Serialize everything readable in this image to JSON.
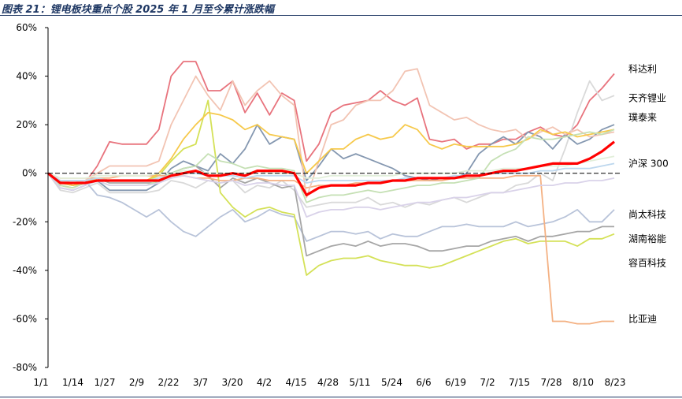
{
  "chart_data": {
    "type": "line",
    "title": "图表 21：锂电板块重点个股 2025 年 1 月至今累计涨跌幅",
    "x_tick_labels": [
      "1/1",
      "1/14",
      "1/27",
      "2/9",
      "2/22",
      "3/7",
      "3/20",
      "4/2",
      "4/15",
      "4/28",
      "5/11",
      "5/24",
      "6/6",
      "6/19",
      "7/2",
      "7/15",
      "7/28",
      "8/10",
      "8/23"
    ],
    "y_tick_labels": [
      "60%",
      "40%",
      "20%",
      "0%",
      "-20%",
      "-40%",
      "-60%",
      "-80%"
    ],
    "y_ticks": [
      60,
      40,
      20,
      0,
      -20,
      -40,
      -60,
      -80
    ],
    "ylim": [
      -80,
      60
    ],
    "xlabel": "",
    "ylabel": "",
    "grid": false,
    "series": [
      {
        "name": "科达利",
        "color": "#e8737d",
        "values": [
          0,
          -3,
          -5,
          -4,
          3,
          13,
          12,
          12,
          12,
          18,
          40,
          46,
          46,
          34,
          34,
          38,
          25,
          33,
          24,
          33,
          30,
          5,
          12,
          25,
          28,
          29,
          30,
          34,
          30,
          28,
          31,
          14,
          13,
          14,
          10,
          12,
          12,
          14,
          14,
          17,
          19,
          16,
          15,
          20,
          30,
          35,
          41
        ]
      },
      {
        "name": "天齐锂业",
        "color": "#d9d9d9",
        "values": [
          0,
          -7,
          -8,
          -6,
          -4,
          -8,
          -8,
          -8,
          -8,
          -7,
          -3,
          -4,
          -6,
          -3,
          -4,
          -3,
          -8,
          -5,
          -6,
          -3,
          -7,
          -14,
          -13,
          -12,
          -12,
          -12,
          -10,
          -13,
          -12,
          -14,
          -12,
          -13,
          -11,
          -10,
          -12,
          -10,
          -8,
          -8,
          -5,
          -4,
          0,
          -3,
          10,
          25,
          38,
          30,
          32
        ]
      },
      {
        "name": "璞泰来",
        "color": "#8497b0",
        "values": [
          0,
          -6,
          -7,
          -5,
          -3,
          -7,
          -7,
          -7,
          -7,
          -4,
          2,
          5,
          3,
          1,
          8,
          4,
          10,
          20,
          12,
          15,
          14,
          -3,
          3,
          10,
          6,
          8,
          6,
          4,
          2,
          -1,
          -2,
          -3,
          -2,
          -2,
          0,
          8,
          12,
          15,
          12,
          17,
          15,
          10,
          16,
          12,
          14,
          18,
          20
        ]
      },
      {
        "name": "沪深300",
        "color": "#ff0000",
        "bold": true,
        "values": [
          0,
          -4,
          -4,
          -4,
          -3,
          -3,
          -3,
          -3,
          -3,
          -3,
          -1,
          0,
          1,
          -1,
          -1,
          0,
          -1,
          1,
          1,
          1,
          0,
          -9,
          -6,
          -5,
          -5,
          -5,
          -4,
          -4,
          -3,
          -3,
          -2,
          -2,
          -2,
          -2,
          -1,
          -1,
          0,
          1,
          1,
          2,
          3,
          4,
          4,
          4,
          6,
          9,
          13
        ]
      },
      {
        "name": "尚太科技",
        "color": "#b8c3d9",
        "values": [
          0,
          -3,
          -3,
          -3,
          -9,
          -10,
          -12,
          -15,
          -18,
          -15,
          -20,
          -24,
          -26,
          -22,
          -18,
          -15,
          -20,
          -18,
          -15,
          -17,
          -18,
          -28,
          -26,
          -24,
          -24,
          -25,
          -24,
          -27,
          -25,
          -26,
          -26,
          -24,
          -22,
          -22,
          -21,
          -22,
          -22,
          -22,
          -20,
          -22,
          -21,
          -20,
          -18,
          -15,
          -20,
          -20,
          -15
        ]
      },
      {
        "name": "湖南裕能",
        "color": "#a6a6a6",
        "values": [
          0,
          -4,
          -5,
          -4,
          -2,
          -4,
          -4,
          -4,
          -4,
          -4,
          0,
          2,
          3,
          -1,
          -6,
          -2,
          -4,
          -2,
          -4,
          -6,
          -5,
          -34,
          -32,
          -30,
          -29,
          -30,
          -28,
          -30,
          -29,
          -29,
          -30,
          -32,
          -32,
          -31,
          -30,
          -30,
          -28,
          -27,
          -26,
          -28,
          -26,
          -26,
          -25,
          -24,
          -24,
          -22,
          -22
        ]
      },
      {
        "name": "容百科技",
        "color": "#d4e157",
        "values": [
          0,
          -5,
          -6,
          -4,
          -2,
          -3,
          -3,
          -3,
          -3,
          -1,
          5,
          10,
          12,
          30,
          -8,
          -14,
          -18,
          -15,
          -14,
          -16,
          -17,
          -42,
          -38,
          -36,
          -35,
          -35,
          -34,
          -36,
          -37,
          -38,
          -38,
          -39,
          -38,
          -36,
          -34,
          -32,
          -30,
          -28,
          -27,
          -29,
          -28,
          -28,
          -28,
          -30,
          -27,
          -27,
          -25
        ]
      },
      {
        "name": "比亚迪",
        "color": "#f4b183",
        "values": [
          0,
          -2,
          -2,
          -2,
          -2,
          -2,
          -1,
          -1,
          -1,
          -1,
          -1,
          -1,
          -2,
          -2,
          -3,
          -3,
          -2,
          -2,
          -3,
          -3,
          -3,
          -6,
          -5,
          -5,
          -5,
          -4,
          -4,
          -4,
          -3,
          -3,
          -3,
          -3,
          -3,
          -2,
          -2,
          -2,
          -2,
          -2,
          -1,
          -1,
          -1,
          -61,
          -61,
          -62,
          -62,
          -61,
          -61
        ]
      },
      {
        "name": "",
        "color": "#f2c4b3",
        "values": [
          0,
          -3,
          -4,
          -3,
          0,
          3,
          3,
          3,
          3,
          5,
          20,
          30,
          40,
          32,
          26,
          38,
          28,
          34,
          38,
          32,
          28,
          -10,
          5,
          20,
          22,
          28,
          30,
          30,
          34,
          42,
          43,
          28,
          25,
          22,
          23,
          20,
          18,
          17,
          18,
          14,
          17,
          19,
          16,
          18,
          15,
          16,
          17
        ]
      },
      {
        "name": "",
        "color": "#f6c94b",
        "values": [
          0,
          -4,
          -5,
          -4,
          -2,
          -3,
          -3,
          -3,
          -3,
          0,
          6,
          14,
          20,
          25,
          24,
          22,
          18,
          20,
          16,
          15,
          14,
          0,
          5,
          10,
          10,
          14,
          16,
          14,
          15,
          20,
          18,
          12,
          10,
          12,
          11,
          11,
          11,
          11,
          12,
          14,
          18,
          16,
          17,
          15,
          16,
          17,
          18
        ]
      },
      {
        "name": "",
        "color": "#c5e0b4",
        "values": [
          0,
          -5,
          -6,
          -4,
          -3,
          -5,
          -5,
          -5,
          -5,
          -3,
          0,
          2,
          3,
          8,
          5,
          4,
          2,
          3,
          2,
          2,
          1,
          -12,
          -10,
          -9,
          -9,
          -8,
          -7,
          -8,
          -7,
          -6,
          -5,
          -5,
          -4,
          -4,
          -3,
          -2,
          5,
          8,
          10,
          15,
          14,
          14,
          15,
          16,
          17,
          16,
          18
        ]
      },
      {
        "name": "",
        "color": "#d9d2e9",
        "values": [
          0,
          -6,
          -7,
          -5,
          -3,
          -5,
          -5,
          -5,
          -5,
          -4,
          -2,
          -1,
          -2,
          -3,
          -4,
          -3,
          -5,
          -4,
          -4,
          -5,
          -5,
          -18,
          -16,
          -15,
          -15,
          -14,
          -14,
          -15,
          -14,
          -13,
          -12,
          -12,
          -11,
          -10,
          -10,
          -9,
          -8,
          -8,
          -7,
          -6,
          -5,
          -5,
          -4,
          -4,
          -3,
          -3,
          -2
        ]
      },
      {
        "name": "",
        "color": "#bdd7ee",
        "values": [
          0,
          -3,
          -3,
          -3,
          -2,
          -3,
          -3,
          -3,
          -3,
          -2,
          -1,
          0,
          0,
          -1,
          -1,
          -1,
          -2,
          -1,
          -1,
          -1,
          -1,
          -4,
          -3,
          -3,
          -3,
          -3,
          -3,
          -3,
          -3,
          -2,
          -2,
          -2,
          -2,
          -1,
          -1,
          -1,
          0,
          0,
          0,
          0,
          1,
          1,
          2,
          2,
          2,
          3,
          4
        ]
      },
      {
        "name": "",
        "color": "#e2efda",
        "values": [
          0,
          -2,
          -2,
          -2,
          -1,
          -1,
          -1,
          -1,
          -1,
          0,
          0,
          1,
          1,
          0,
          0,
          0,
          0,
          1,
          0,
          0,
          0,
          -2,
          -2,
          -1,
          -1,
          -1,
          -1,
          -1,
          -1,
          0,
          0,
          0,
          0,
          0,
          1,
          1,
          1,
          2,
          2,
          2,
          3,
          3,
          3,
          4,
          5,
          6,
          7
        ]
      }
    ]
  }
}
